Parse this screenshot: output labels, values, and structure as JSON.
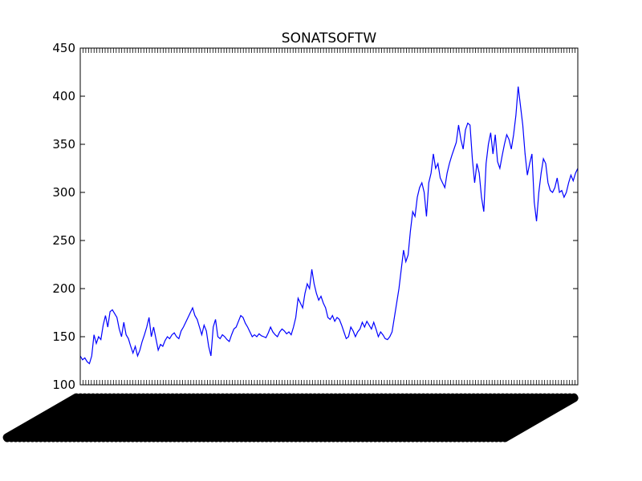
{
  "chart_data": {
    "type": "line",
    "title": "SONATSOFTW",
    "xlabel": "",
    "ylabel": "",
    "ylim": [
      100,
      450
    ],
    "yticks": [
      100,
      150,
      200,
      250,
      300,
      350,
      400,
      450
    ],
    "grid": false,
    "legend": "none",
    "colors": {
      "line": "#0000ff",
      "axes": "#000000",
      "background": "#ffffff"
    },
    "series": [
      {
        "values": [
          130,
          126,
          128,
          124,
          122,
          130,
          152,
          143,
          150,
          147,
          162,
          172,
          160,
          176,
          178,
          174,
          170,
          158,
          150,
          165,
          152,
          148,
          140,
          133,
          140,
          130,
          136,
          145,
          152,
          160,
          170,
          150,
          160,
          148,
          136,
          142,
          140,
          146,
          150,
          148,
          152,
          154,
          150,
          148,
          156,
          160,
          165,
          170,
          175,
          180,
          172,
          168,
          160,
          152,
          162,
          156,
          140,
          130,
          160,
          168,
          150,
          148,
          152,
          150,
          147,
          145,
          152,
          158,
          160,
          166,
          172,
          170,
          164,
          160,
          155,
          150,
          152,
          150,
          153,
          151,
          150,
          149,
          154,
          160,
          155,
          152,
          150,
          155,
          158,
          156,
          153,
          155,
          152,
          160,
          170,
          190,
          185,
          180,
          195,
          205,
          200,
          220,
          205,
          195,
          188,
          192,
          185,
          180,
          170,
          168,
          172,
          166,
          170,
          168,
          162,
          155,
          148,
          150,
          160,
          156,
          150,
          155,
          158,
          165,
          160,
          166,
          162,
          158,
          165,
          158,
          150,
          155,
          152,
          148,
          147,
          150,
          155,
          170,
          185,
          200,
          220,
          240,
          228,
          235,
          260,
          280,
          275,
          295,
          305,
          310,
          300,
          275,
          310,
          320,
          340,
          325,
          330,
          315,
          310,
          305,
          320,
          330,
          338,
          345,
          352,
          370,
          355,
          345,
          365,
          372,
          370,
          335,
          310,
          330,
          320,
          295,
          280,
          330,
          350,
          362,
          340,
          360,
          332,
          325,
          338,
          350,
          360,
          355,
          345,
          360,
          380,
          410,
          390,
          370,
          340,
          318,
          330,
          340,
          290,
          270,
          300,
          320,
          335,
          330,
          310,
          302,
          300,
          305,
          315,
          300,
          302,
          295,
          300,
          310,
          318,
          312,
          320,
          325
        ]
      }
    ]
  }
}
